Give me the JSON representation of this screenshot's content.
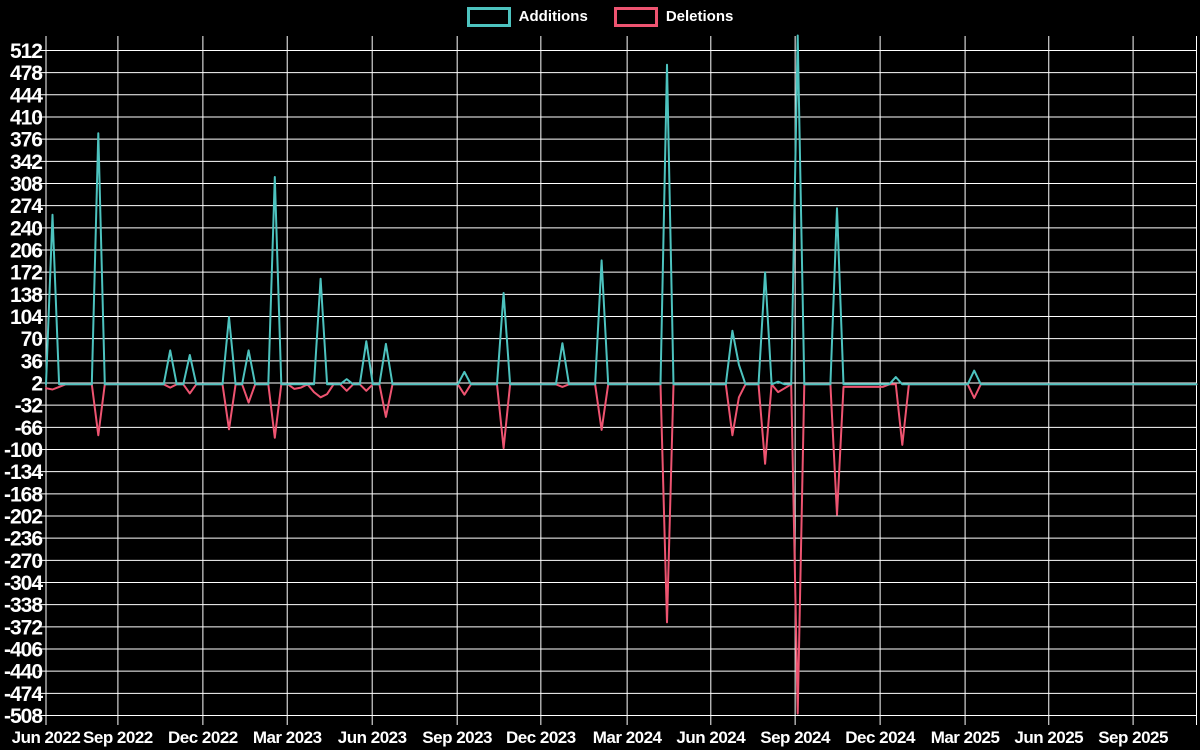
{
  "page": {
    "background": "#000000",
    "grid_color": "#ffffff",
    "text_color": "#ffffff"
  },
  "legend": {
    "items": [
      {
        "label": "Additions",
        "color": "#4dc3bf"
      },
      {
        "label": "Deletions",
        "color": "#ee5471"
      }
    ]
  },
  "chart_data": {
    "type": "line",
    "title": "",
    "xlabel": "",
    "ylabel": "",
    "grid": true,
    "legend_position": "top-center",
    "x_axis": {
      "unit": "weeks",
      "total_weeks": 176,
      "tick_labels": [
        "Jun 2022",
        "Sep 2022",
        "Dec 2022",
        "Mar 2023",
        "Jun 2023",
        "Sep 2023",
        "Dec 2023",
        "Mar 2024",
        "Jun 2024",
        "Sep 2024",
        "Dec 2024",
        "Mar 2025",
        "Jun 2025",
        "Sep 2025"
      ],
      "tick_weeks": [
        0,
        11,
        24,
        36.9,
        49.9,
        62.9,
        75.7,
        88.9,
        101.7,
        114.6,
        127.6,
        140.6,
        153.4,
        166.3
      ],
      "right_border_week": 176
    },
    "y_axis": {
      "min": -508,
      "max": 546,
      "tick_values": [
        512,
        478,
        444,
        410,
        376,
        342,
        308,
        274,
        240,
        206,
        172,
        138,
        104,
        70,
        36,
        2,
        -32,
        -66,
        -100,
        -134,
        -168,
        -202,
        -236,
        -270,
        -304,
        -338,
        -372,
        -406,
        -440,
        -474,
        -508
      ]
    },
    "series": [
      {
        "name": "Deletions",
        "color": "#ee5471",
        "default_value": 0,
        "points": {
          "0": -6,
          "1": -8,
          "2": -4,
          "8": -78,
          "19": -5,
          "22": -14,
          "28": -69,
          "31": -28,
          "35": -82,
          "38": -7,
          "39": -5,
          "41": -12,
          "42": -20,
          "43": -15,
          "46": -10,
          "49": -10,
          "52": -50,
          "64": -16,
          "70": -98,
          "79": -4,
          "85": -70,
          "95": -365,
          "105": -78,
          "106": -20,
          "110": -122,
          "112": -12,
          "113": -6,
          "115": -505,
          "121": -200,
          "122": -4,
          "123": -4,
          "124": -4,
          "125": -4,
          "126": -4,
          "127": -4,
          "128": -4,
          "131": -93,
          "142": -21
        }
      },
      {
        "name": "Additions",
        "color": "#4dc3bf",
        "default_value": 0,
        "points": {
          "1": 260,
          "8": 385,
          "19": 52,
          "22": 45,
          "28": 103,
          "31": 52,
          "35": 318,
          "42": 162,
          "46": 8,
          "49": 66,
          "52": 62,
          "64": 19,
          "70": 140,
          "79": 63,
          "85": 190,
          "95": 490,
          "105": 82,
          "106": 30,
          "110": 172,
          "112": 4,
          "115": 535,
          "121": 270,
          "130": 11,
          "142": 21
        }
      }
    ]
  }
}
